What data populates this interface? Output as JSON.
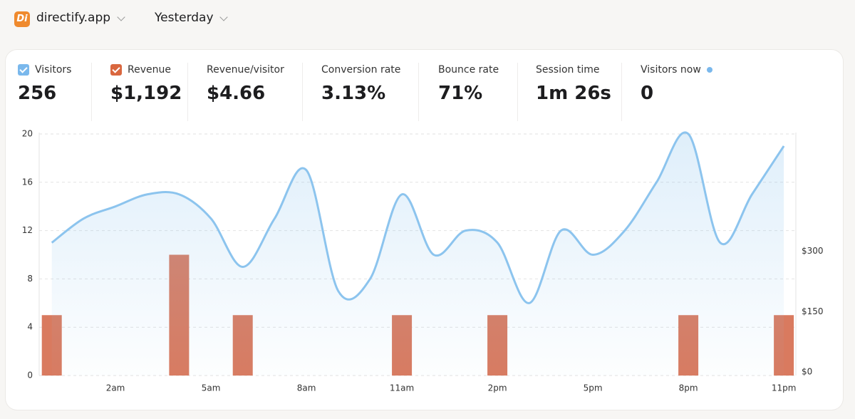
{
  "header": {
    "logo": "Di",
    "site": "directify.app",
    "period": "Yesterday"
  },
  "metrics": [
    {
      "value": "256"
    },
    {
      "value": "$1,192"
    },
    {
      "label": "Revenue/visitor",
      "value": "$4.66"
    },
    {
      "label": "Conversion rate",
      "value": "3.13%"
    },
    {
      "label": "Bounce rate",
      "value": "71%"
    },
    {
      "label": "Session time",
      "value": "1m 26s"
    },
    {
      "label": "Visitors now",
      "value": "0"
    }
  ],
  "chart_data": {
    "type": "line",
    "categories": [
      null,
      null,
      "2am",
      null,
      null,
      "5am",
      null,
      null,
      "8am",
      null,
      null,
      "11am",
      null,
      null,
      "2pm",
      null,
      null,
      "5pm",
      null,
      null,
      "8pm",
      null,
      null,
      "11pm"
    ],
    "series": [
      {
        "name": "Visitors",
        "type": "line",
        "color": "#8cc4ee",
        "values": [
          11,
          13,
          14,
          15,
          15,
          13,
          9,
          13,
          17,
          7,
          8,
          15,
          10,
          12,
          11,
          6,
          12,
          10,
          12,
          16,
          20,
          11,
          15,
          19
        ]
      },
      {
        "name": "Revenue",
        "type": "bar",
        "axis": "y2",
        "color": "#d97a5f",
        "values": [
          150,
          0,
          0,
          0,
          300,
          0,
          150,
          0,
          0,
          0,
          0,
          150,
          0,
          0,
          150,
          0,
          0,
          0,
          0,
          0,
          150,
          0,
          0,
          150
        ]
      }
    ],
    "ylim": [
      0,
      20
    ],
    "yticks": [
      0,
      4,
      8,
      12,
      16,
      20
    ],
    "y2lim": [
      0,
      600
    ],
    "y2ticks": [
      {
        "value": 0,
        "label": "$0"
      },
      {
        "value": 150,
        "label": "$150"
      },
      {
        "value": 300,
        "label": "$300"
      }
    ],
    "grid": true
  }
}
